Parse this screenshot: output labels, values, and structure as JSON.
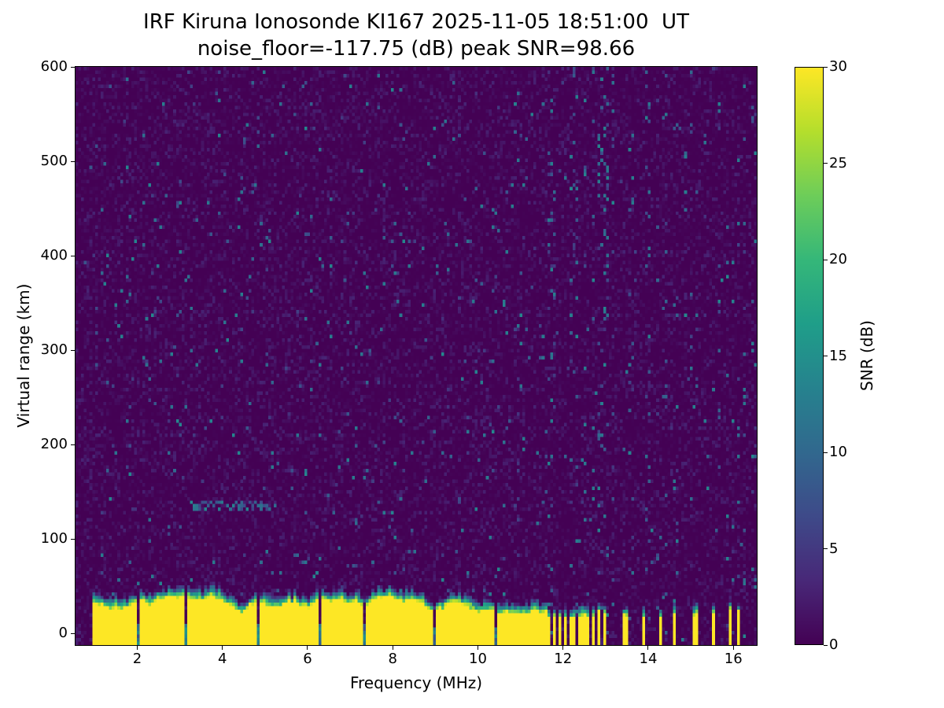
{
  "chart_data": {
    "type": "heatmap",
    "title_line1": "IRF Kiruna Ionosonde KI167 2025-11-05 18:51:00  UT",
    "title_line2": "noise_floor=-117.75 (dB) peak SNR=98.66",
    "xlabel": "Frequency (MHz)",
    "ylabel": "Virtual range (km)",
    "xlim": [
      0.55,
      16.55
    ],
    "ylim": [
      -12.5,
      600
    ],
    "xticks": [
      2,
      4,
      6,
      8,
      10,
      12,
      14,
      16
    ],
    "yticks": [
      0,
      100,
      200,
      300,
      400,
      500,
      600
    ],
    "grid_on": false,
    "colorbar": {
      "label": "SNR (dB)",
      "min": 0,
      "max": 30,
      "ticks": [
        0,
        5,
        10,
        15,
        20,
        25,
        30
      ]
    },
    "colormap": {
      "name": "viridis",
      "stops": [
        [
          68,
          1,
          84
        ],
        [
          72,
          40,
          120
        ],
        [
          62,
          74,
          137
        ],
        [
          49,
          104,
          142
        ],
        [
          38,
          130,
          142
        ],
        [
          31,
          158,
          137
        ],
        [
          53,
          183,
          121
        ],
        [
          109,
          205,
          89
        ],
        [
          180,
          222,
          44
        ],
        [
          253,
          231,
          37
        ]
      ]
    },
    "content": {
      "noise_floor_db": -117.75,
      "peak_snr_db": 98.66,
      "background_snr_db": [
        0,
        3
      ],
      "speckle_snr_db": [
        4,
        14
      ],
      "ground_band": {
        "snr_db": 30,
        "top_mean_km": 30,
        "top_jitter_km": 9,
        "transition_km": 12,
        "continuous_mhz": [
          0.95,
          11.62
        ],
        "notch_mhz": [
          2.05,
          3.15,
          4.85,
          6.3,
          7.35,
          9.0,
          10.4
        ]
      },
      "hf_stripes_mhz": [
        [
          11.66,
          0.03
        ],
        [
          11.78,
          0.03
        ],
        [
          11.9,
          0.035
        ],
        [
          12.03,
          0.035
        ],
        [
          12.16,
          0.03
        ],
        [
          12.28,
          0.035
        ],
        [
          12.42,
          0.03
        ],
        [
          12.55,
          0.04
        ],
        [
          12.7,
          0.035
        ],
        [
          12.85,
          0.03
        ],
        [
          12.98,
          0.035
        ],
        [
          13.48,
          0.045
        ],
        [
          13.88,
          0.025
        ],
        [
          14.3,
          0.045
        ],
        [
          14.63,
          0.02
        ],
        [
          15.1,
          0.045
        ],
        [
          15.52,
          0.05
        ],
        [
          15.9,
          0.02
        ],
        [
          16.12,
          0.035
        ]
      ],
      "hf_noise_columns_mhz": [
        11.62,
        16.55
      ],
      "echo_trace": {
        "freq_mhz": [
          3.2,
          5.3
        ],
        "range_km": [
          130,
          142
        ],
        "snr_db": [
          6,
          14
        ]
      },
      "grid": {
        "cols": 244,
        "rows": 164
      },
      "seed": 20251105
    }
  }
}
